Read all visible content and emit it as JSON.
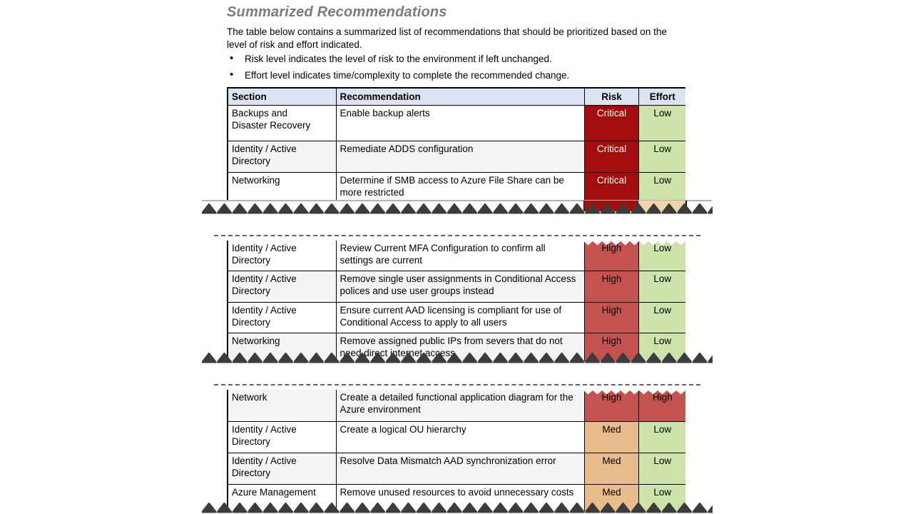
{
  "page": {
    "title": "Summarized Recommendations",
    "intro": "The table below contains a summarized list of recommendations that should be prioritized based on the level of risk and effort indicated.",
    "bullets": [
      "Risk level indicates the level of risk to the environment if left unchanged.",
      "Effort level indicates time/complexity to complete the recommended change."
    ]
  },
  "table": {
    "headers": [
      "Section",
      "Recommendation",
      "Risk",
      "Effort"
    ],
    "sections": [
      {
        "rows": [
          {
            "section": "Backups and Disaster Recovery",
            "recommendation": "Enable backup alerts",
            "risk": "Critical",
            "effort": "Low",
            "shaded": false
          },
          {
            "section": "Identity / Active Directory",
            "recommendation": "Remediate ADDS configuration",
            "risk": "Critical",
            "effort": "Low",
            "shaded": true
          },
          {
            "section": "Networking",
            "recommendation": "Determine if SMB access to Azure File Share can be more restricted",
            "risk": "Critical",
            "effort": "Low",
            "shaded": false
          }
        ]
      },
      {
        "rows": [
          {
            "section": "Identity / Active Directory",
            "recommendation": "Review Current MFA Configuration to confirm all settings are current",
            "risk": "High",
            "effort": "Low",
            "shaded": false
          },
          {
            "section": "Identity / Active Directory",
            "recommendation": "Remove single user assignments in Conditional Access polices and use user groups instead",
            "risk": "High",
            "effort": "Low",
            "shaded": true
          },
          {
            "section": "Identity / Active Directory",
            "recommendation": "Ensure current AAD licensing is compliant for use of Conditional Access to apply to all users",
            "risk": "High",
            "effort": "Low",
            "shaded": false
          },
          {
            "section": "Networking",
            "recommendation": "Remove assigned public IPs from severs that do not need direct internet access",
            "risk": "High",
            "effort": "Low",
            "shaded": true
          }
        ]
      },
      {
        "rows": [
          {
            "section": "Network",
            "recommendation": "Create a detailed functional application diagram for the Azure environment",
            "risk": "High",
            "effort": "High",
            "shaded": true
          },
          {
            "section": "Identity / Active Directory",
            "recommendation": "Create a logical OU hierarchy",
            "risk": "Med",
            "effort": "Low",
            "shaded": false
          },
          {
            "section": "Identity / Active Directory",
            "recommendation": "Resolve Data Mismatch AAD synchronization error",
            "risk": "Med",
            "effort": "Low",
            "shaded": true
          },
          {
            "section": "Azure Management",
            "recommendation": "Remove unused resources to avoid unnecessary costs",
            "risk": "Med",
            "effort": "Low",
            "shaded": false
          }
        ]
      }
    ]
  },
  "colors": {
    "header_bg": "#dde3f2",
    "row_shaded_bg": "#f4f4f4",
    "title_gray": "#7b7b7b",
    "tear_dark": "#3c3c3c",
    "tear_shadow": "#ababab",
    "levels": {
      "Critical": {
        "bg": "#a30d0d",
        "text": "#ffffff"
      },
      "High": {
        "bg": "#c4534f",
        "text": "#000000"
      },
      "Med": {
        "bg": "#e9bd8b",
        "text": "#000000"
      },
      "Low": {
        "bg": "#cde3aa",
        "text": "#000000"
      }
    },
    "partial_next_row": {
      "risk": "#a30d0d",
      "effort": "#f1d4ac"
    }
  }
}
